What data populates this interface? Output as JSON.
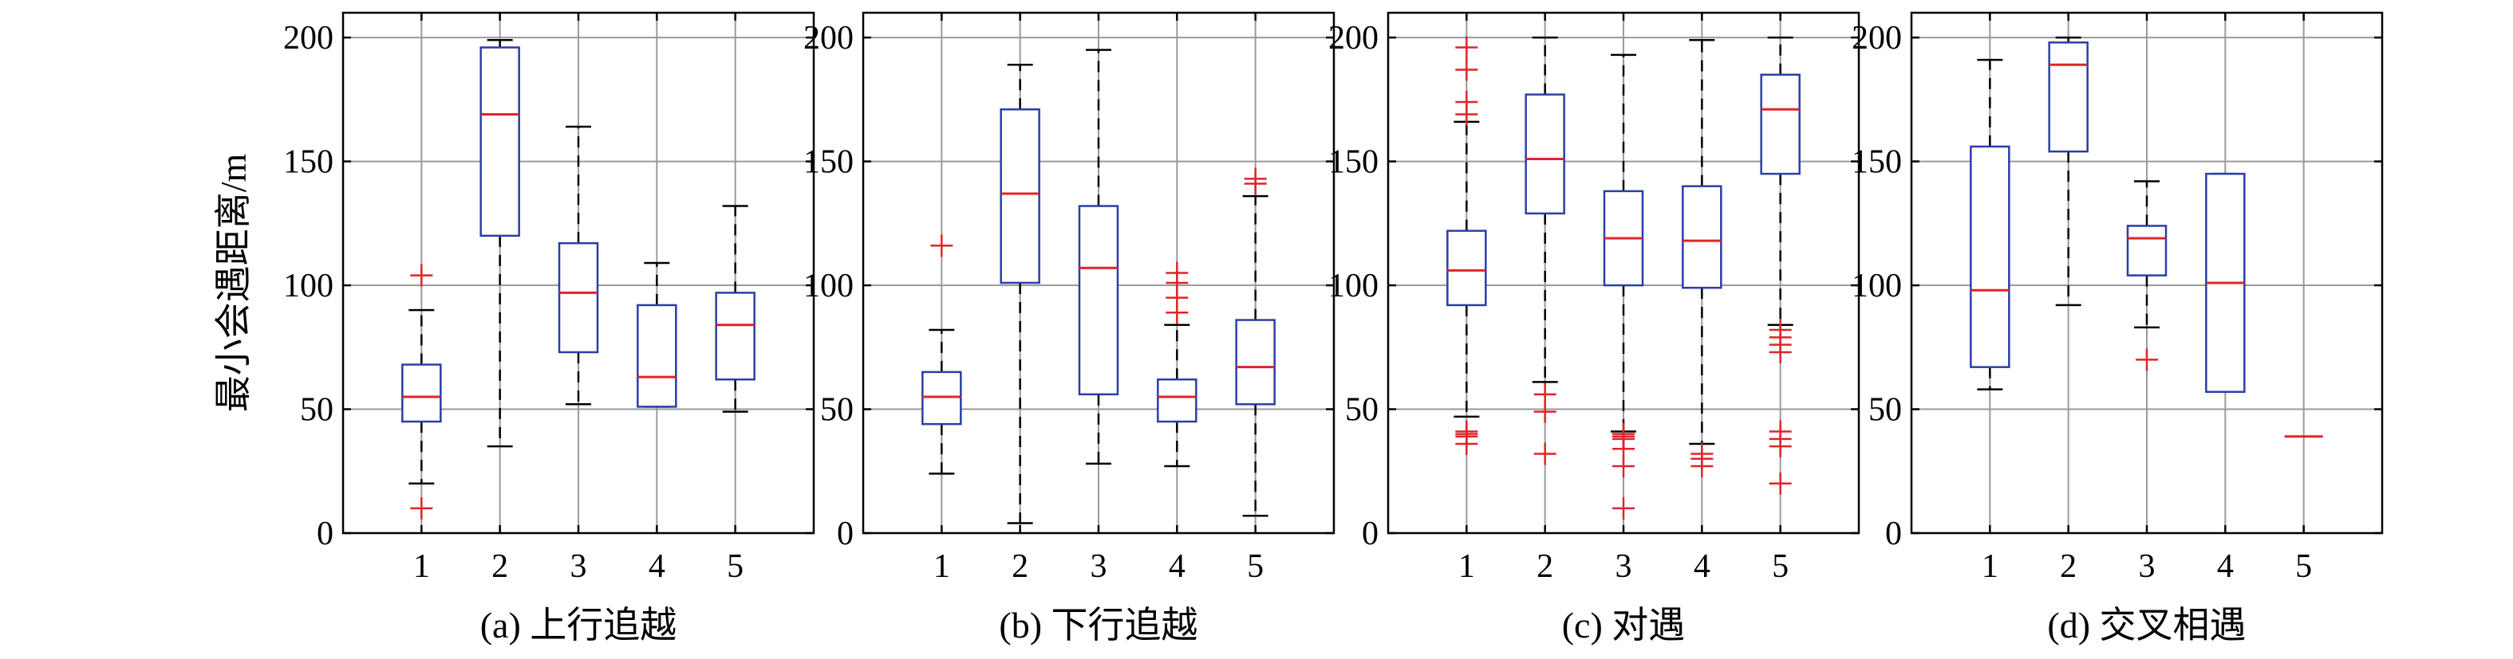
{
  "ylabel": "最小会遇距离/m",
  "colors": {
    "box": "#2b3ea6",
    "median": "#e0242a",
    "outlier": "#e0242a",
    "whisker": "#000000",
    "grid": "#9a9a9a"
  },
  "chart_data": [
    {
      "type": "box",
      "caption": "(a) 上行追越",
      "categories": [
        "1",
        "2",
        "3",
        "4",
        "5"
      ],
      "ylim": [
        0,
        210
      ],
      "yticks": [
        0,
        50,
        100,
        150,
        200
      ],
      "grid": true,
      "boxes": [
        {
          "q1": 45,
          "median": 55,
          "q3": 68,
          "whislo": 20,
          "whishi": 90,
          "outliers": [
            10,
            104
          ]
        },
        {
          "q1": 120,
          "median": 169,
          "q3": 196,
          "whislo": 35,
          "whishi": 199,
          "outliers": []
        },
        {
          "q1": 73,
          "median": 97,
          "q3": 117,
          "whislo": 52,
          "whishi": 164,
          "outliers": []
        },
        {
          "q1": 51,
          "median": 63,
          "q3": 92,
          "whislo": 51,
          "whishi": 109,
          "outliers": []
        },
        {
          "q1": 62,
          "median": 84,
          "q3": 97,
          "whislo": 49,
          "whishi": 132,
          "outliers": []
        }
      ]
    },
    {
      "type": "box",
      "caption": "(b) 下行追越",
      "categories": [
        "1",
        "2",
        "3",
        "4",
        "5"
      ],
      "ylim": [
        0,
        210
      ],
      "yticks": [
        0,
        50,
        100,
        150,
        200
      ],
      "grid": true,
      "boxes": [
        {
          "q1": 44,
          "median": 55,
          "q3": 65,
          "whislo": 24,
          "whishi": 82,
          "outliers": [
            116
          ]
        },
        {
          "q1": 101,
          "median": 137,
          "q3": 171,
          "whislo": 4,
          "whishi": 189,
          "outliers": []
        },
        {
          "q1": 56,
          "median": 107,
          "q3": 132,
          "whislo": 28,
          "whishi": 195,
          "outliers": []
        },
        {
          "q1": 45,
          "median": 55,
          "q3": 62,
          "whislo": 27,
          "whishi": 84,
          "outliers": [
            89,
            95,
            101,
            105
          ]
        },
        {
          "q1": 52,
          "median": 67,
          "q3": 86,
          "whislo": 7,
          "whishi": 136,
          "outliers": [
            141,
            143
          ]
        }
      ]
    },
    {
      "type": "box",
      "caption": "(c) 对遇",
      "categories": [
        "1",
        "2",
        "3",
        "4",
        "5"
      ],
      "ylim": [
        0,
        210
      ],
      "yticks": [
        0,
        50,
        100,
        150,
        200
      ],
      "grid": true,
      "boxes": [
        {
          "q1": 92,
          "median": 106,
          "q3": 122,
          "whislo": 47,
          "whishi": 166,
          "outliers": [
            36,
            39,
            40,
            41,
            169,
            174,
            187,
            196
          ]
        },
        {
          "q1": 129,
          "median": 151,
          "q3": 177,
          "whislo": 61,
          "whishi": 200,
          "outliers": [
            32,
            49,
            56
          ]
        },
        {
          "q1": 100,
          "median": 119,
          "q3": 138,
          "whislo": 41,
          "whishi": 193,
          "outliers": [
            10,
            27,
            34,
            38,
            39,
            40
          ]
        },
        {
          "q1": 99,
          "median": 118,
          "q3": 140,
          "whislo": 36,
          "whishi": 199,
          "outliers": [
            27,
            30,
            32
          ]
        },
        {
          "q1": 145,
          "median": 171,
          "q3": 185,
          "whislo": 84,
          "whishi": 200,
          "outliers": [
            20,
            35,
            38,
            41,
            73,
            76,
            79,
            82
          ]
        }
      ]
    },
    {
      "type": "box",
      "caption": "(d) 交叉相遇",
      "categories": [
        "1",
        "2",
        "3",
        "4",
        "5"
      ],
      "ylim": [
        0,
        210
      ],
      "yticks": [
        0,
        50,
        100,
        150,
        200
      ],
      "grid": true,
      "boxes": [
        {
          "q1": 67,
          "median": 98,
          "q3": 156,
          "whislo": 58,
          "whishi": 191,
          "outliers": []
        },
        {
          "q1": 154,
          "median": 189,
          "q3": 198,
          "whislo": 92,
          "whishi": 200,
          "outliers": []
        },
        {
          "q1": 104,
          "median": 119,
          "q3": 124,
          "whislo": 83,
          "whishi": 142,
          "outliers": [
            70
          ]
        },
        {
          "q1": 57,
          "median": 101,
          "q3": 145,
          "whislo": 57,
          "whishi": 145,
          "outliers": []
        },
        {
          "q1": 39,
          "median": 39,
          "q3": 39,
          "whislo": 39,
          "whishi": 39,
          "outliers": []
        }
      ]
    }
  ]
}
